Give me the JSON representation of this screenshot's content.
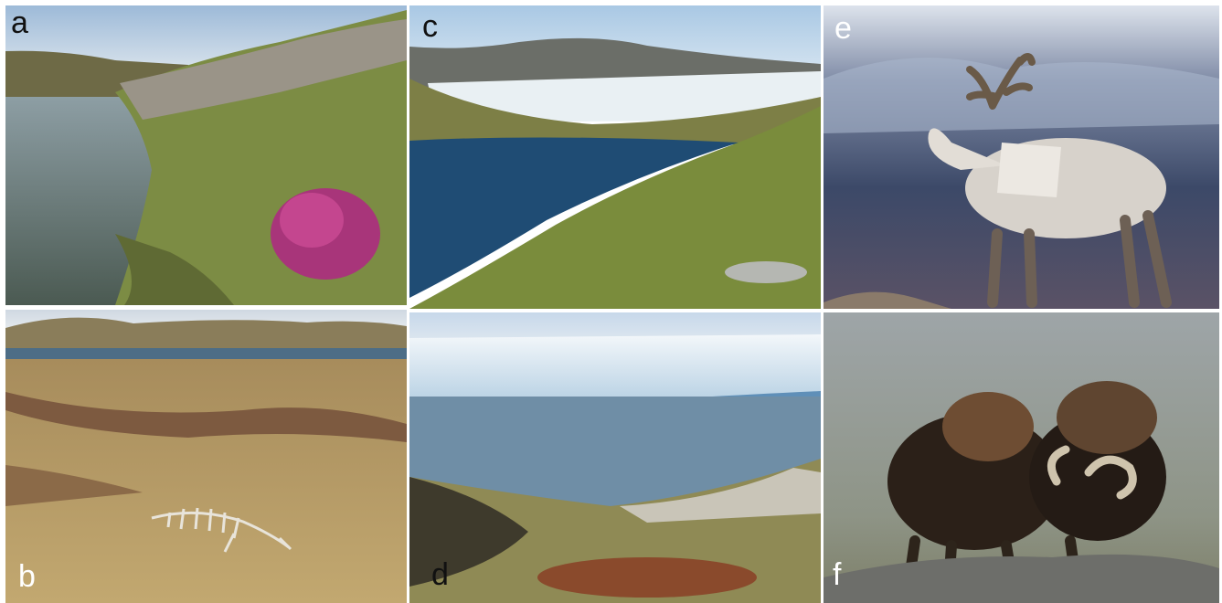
{
  "figure": {
    "panels": [
      {
        "label": "a"
      },
      {
        "label": "b"
      },
      {
        "label": "c"
      },
      {
        "label": "d"
      },
      {
        "label": "e"
      },
      {
        "label": "f"
      }
    ]
  },
  "colors": {
    "sky": "#b8cfe6",
    "lake": "#1f4f77",
    "ice": "#e9f1f6",
    "tundra": "#8c9a4a",
    "dry_grass": "#b59a62",
    "heather": "#b03a82"
  }
}
